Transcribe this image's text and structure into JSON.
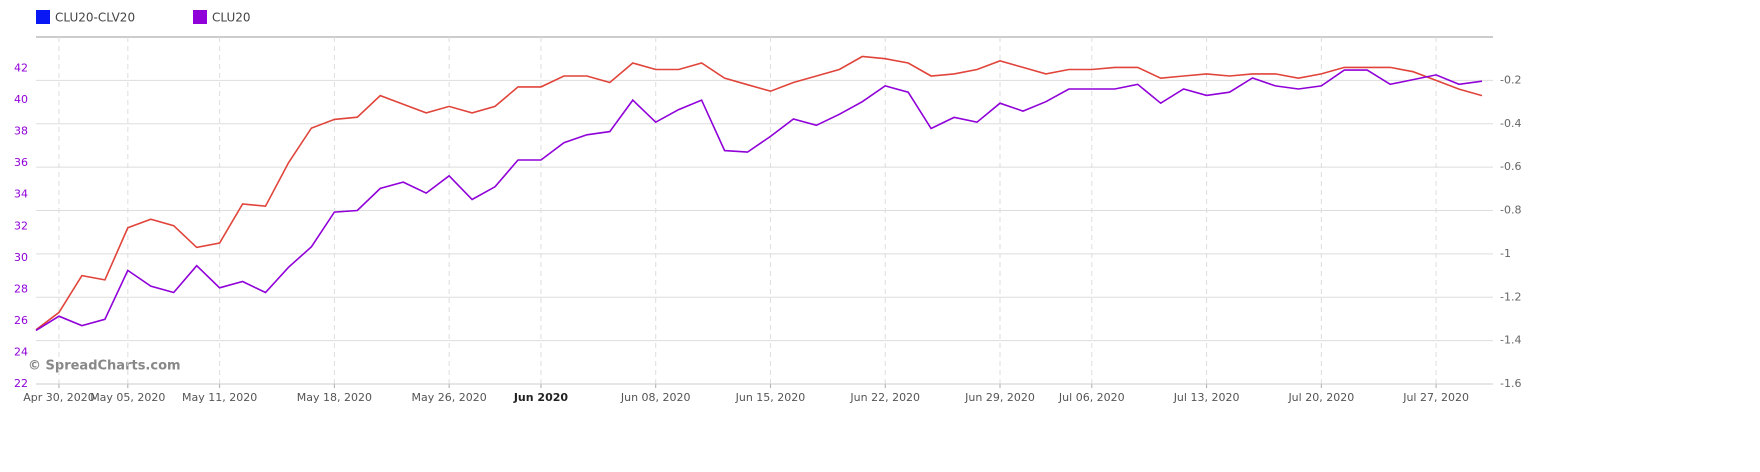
{
  "chart_data": {
    "type": "line",
    "categories": [
      null,
      "Apr 30, 2020",
      null,
      null,
      "May 05, 2020",
      null,
      null,
      null,
      "May 11, 2020",
      null,
      null,
      null,
      null,
      "May 18, 2020",
      null,
      null,
      null,
      null,
      "May 26, 2020",
      null,
      null,
      null,
      "Jun 2020",
      null,
      null,
      null,
      null,
      "Jun 08, 2020",
      null,
      null,
      null,
      null,
      "Jun 15, 2020",
      null,
      null,
      null,
      null,
      "Jun 22, 2020",
      null,
      null,
      null,
      null,
      "Jun 29, 2020",
      null,
      null,
      null,
      "Jul 06, 2020",
      null,
      null,
      null,
      null,
      "Jul 13, 2020",
      null,
      null,
      null,
      null,
      "Jul 20, 2020",
      null,
      null,
      null,
      null,
      "Jul 27, 2020",
      null,
      null
    ],
    "bold_label_indices": [
      22
    ],
    "series": [
      {
        "name": "CLU20-CLV20",
        "color": "#e0443a",
        "legend_color": "#0a17f5",
        "axis": "y2",
        "values": [
          -1.35,
          -1.27,
          -1.1,
          -1.12,
          -0.88,
          -0.84,
          -0.87,
          -0.97,
          -0.95,
          -0.77,
          -0.78,
          -0.58,
          -0.42,
          -0.38,
          -0.37,
          -0.27,
          -0.31,
          -0.35,
          -0.32,
          -0.35,
          -0.32,
          -0.23,
          -0.23,
          -0.18,
          -0.18,
          -0.21,
          -0.12,
          -0.15,
          -0.15,
          -0.12,
          -0.19,
          -0.22,
          -0.25,
          -0.21,
          -0.18,
          -0.15,
          -0.09,
          -0.1,
          -0.12,
          -0.18,
          -0.17,
          -0.15,
          -0.11,
          -0.14,
          -0.17,
          -0.15,
          -0.15,
          -0.14,
          -0.14,
          -0.19,
          -0.18,
          -0.17,
          -0.18,
          -0.17,
          -0.17,
          -0.19,
          -0.17,
          -0.14,
          -0.14,
          -0.14,
          -0.16,
          -0.2,
          -0.24,
          -0.27
        ]
      },
      {
        "name": "CLU20",
        "color": "#9000d8",
        "legend_color": "#9000d8",
        "values": [
          25.4,
          26.3,
          25.7,
          26.1,
          29.2,
          28.2,
          27.8,
          29.5,
          28.1,
          28.5,
          27.8,
          29.4,
          30.7,
          32.9,
          33.0,
          34.4,
          34.8,
          34.1,
          35.2,
          33.7,
          34.5,
          36.2,
          36.2,
          37.3,
          37.8,
          38.0,
          40.0,
          38.6,
          39.4,
          40.0,
          36.8,
          36.7,
          37.7,
          38.8,
          38.4,
          39.1,
          39.9,
          40.9,
          40.5,
          38.2,
          38.9,
          38.6,
          39.8,
          39.3,
          39.9,
          40.7,
          40.7,
          40.7,
          41.0,
          39.8,
          40.7,
          40.3,
          40.5,
          41.4,
          40.9,
          40.7,
          40.9,
          41.9,
          41.9,
          41.0,
          41.3,
          41.6,
          41.0,
          41.2
        ]
      }
    ],
    "ylim": [
      22,
      44
    ],
    "yticks": [
      22,
      24,
      26,
      28,
      30,
      32,
      34,
      36,
      38,
      40,
      42
    ],
    "ytick_color": "#9000d8",
    "y2lim": [
      -1.6,
      0
    ],
    "y2ticks": [
      -1.6,
      -1.4,
      -1.2,
      -1.0,
      -0.8,
      -0.6,
      -0.4,
      -0.2
    ],
    "grid": true,
    "watermark": "© SpreadCharts.com"
  }
}
